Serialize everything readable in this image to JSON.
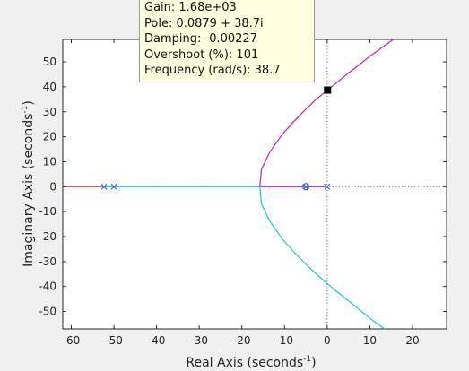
{
  "chart_data": {
    "type": "line",
    "xlabel": "Real Axis (seconds",
    "ylabel": "Imaginary Axis (seconds",
    "unit_exponent": "-1",
    "unit_close": ")",
    "xlim": [
      -62,
      28
    ],
    "ylim": [
      -57,
      59
    ],
    "xticks": [
      -60,
      -50,
      -40,
      -30,
      -20,
      -10,
      0,
      10,
      20
    ],
    "yticks": [
      -50,
      -40,
      -30,
      -20,
      -10,
      0,
      10,
      20,
      30,
      40,
      50
    ],
    "grid": false,
    "colors": {
      "red": "#e8403a",
      "cyan": "#21c5d0",
      "magenta": "#c020c0",
      "marker": "#3d6ad8"
    },
    "series": [
      {
        "color": "red",
        "x": [
          -62,
          -52.3
        ],
        "y": [
          0,
          0
        ]
      },
      {
        "color": "cyan",
        "x": [
          -52.3,
          -50
        ],
        "y": [
          0,
          0
        ]
      },
      {
        "color": "cyan",
        "x": [
          -50,
          -15.8
        ],
        "y": [
          0,
          0
        ]
      },
      {
        "color": "magenta",
        "x": [
          -15.8,
          -5,
          0
        ],
        "y": [
          0,
          0,
          0
        ]
      },
      {
        "color": "magenta",
        "x": [
          -15.8,
          -15.4,
          -13.4,
          -10.5,
          -6.8,
          -2.6,
          0.09,
          4.6,
          10.2,
          15.5
        ],
        "y": [
          0,
          7,
          14,
          21,
          28,
          35,
          38.7,
          45,
          52.5,
          59
        ]
      },
      {
        "color": "cyan",
        "x": [
          -15.8,
          -15.4,
          -13.4,
          -10.5,
          -6.8,
          -2.6,
          1.5,
          5.9,
          10.2,
          13.5
        ],
        "y": [
          0,
          -7,
          -14,
          -21,
          -28,
          -35,
          -41,
          -47,
          -53,
          -57
        ]
      }
    ],
    "poles": [
      [
        -52.3,
        0
      ],
      [
        -50,
        0
      ],
      [
        0,
        0
      ],
      [
        -5,
        0
      ]
    ],
    "zeros": [
      [
        -5,
        0
      ]
    ],
    "selected_point": [
      0.0879,
      38.7
    ]
  },
  "datatip": {
    "lines": [
      "Gain: 1.68e+03",
      "Pole: 0.0879 + 38.7i",
      "Damping: -0.00227",
      "Overshoot (%): 101",
      "Frequency (rad/s): 38.7"
    ]
  }
}
